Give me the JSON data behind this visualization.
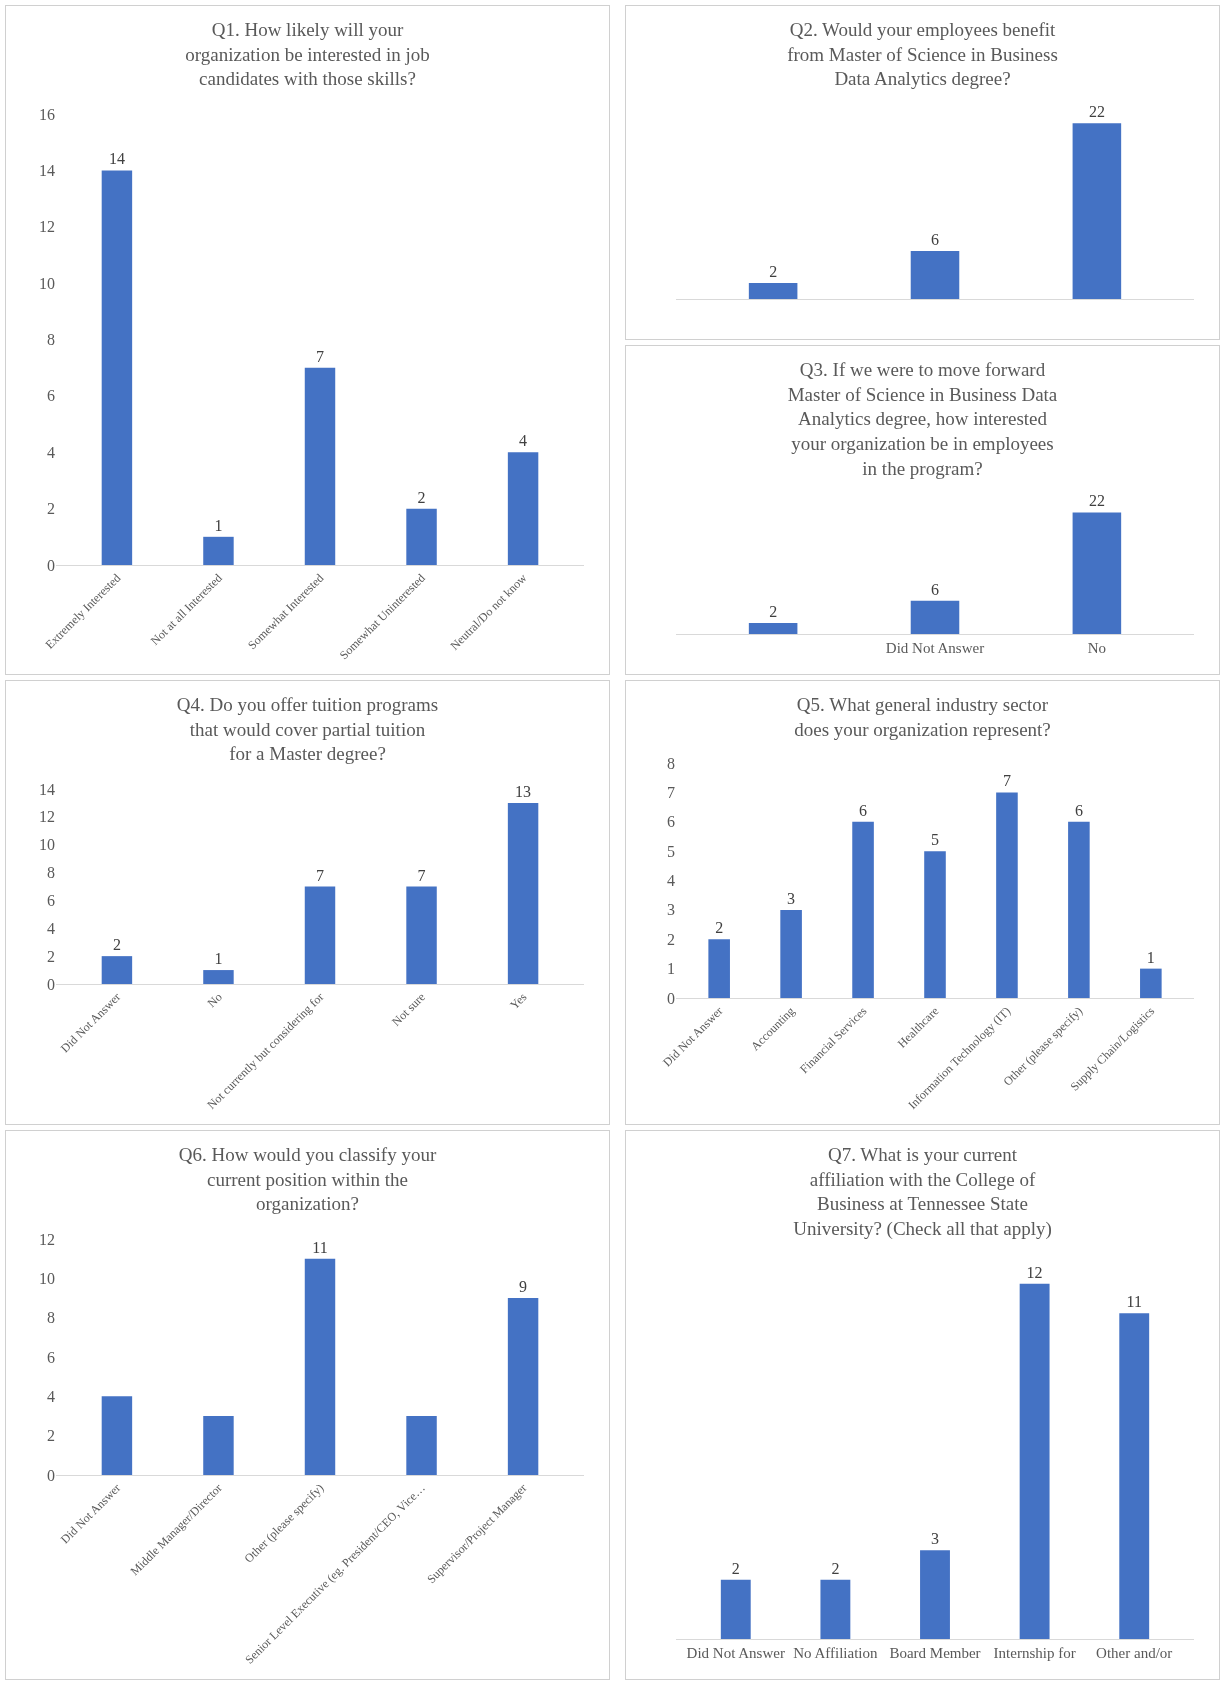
{
  "chart_data": [
    {
      "type": "bar",
      "title": "Q1. How likely will your organization be interested in job candidates with those skills?",
      "categories": [
        "Extremely Interested",
        "Not at all Interested",
        "Somewhat Interested",
        "Somewhat Uninterested",
        "Neutral/Do not know"
      ],
      "values": [
        14,
        1,
        7,
        2,
        4
      ],
      "color": "#4472c4",
      "ylim": [
        0,
        16
      ],
      "yticks": [
        0,
        2,
        4,
        6,
        8,
        10,
        12,
        14,
        16
      ],
      "data_labels": true
    },
    {
      "type": "bar",
      "title": "Q2. Would your employees benefit from Master of Science in Business Data Analytics degree?",
      "categories": [
        null,
        null,
        null
      ],
      "values": [
        2,
        6,
        22
      ],
      "color": "#4472c4",
      "data_labels": true,
      "tick_labels": false
    },
    {
      "type": "bar",
      "title": "Q3. If we were to move forward Master of Science in Business Data Analytics degree, how interested your organization be in employees in the program?",
      "categories": [
        null,
        "Did Not Answer",
        "No"
      ],
      "values": [
        2,
        6,
        22
      ],
      "color": "#4472c4",
      "data_labels": true,
      "tick_labels": "x"
    },
    {
      "type": "bar",
      "title": "Q4. Do you offer tuition programs that would cover partial tuition for a Master degree?",
      "categories": [
        "Did Not Answer",
        "No",
        "Not currently but considering for",
        "Not sure",
        "Yes"
      ],
      "values": [
        2,
        1,
        7,
        7,
        13
      ],
      "color": "#4472c4",
      "ylim": [
        0,
        14
      ],
      "yticks": [
        0,
        2,
        4,
        6,
        8,
        10,
        12,
        14
      ],
      "data_labels": true
    },
    {
      "type": "bar",
      "title": "Q5. What general industry sector does your organization represent?",
      "categories": [
        "Did Not Answer",
        "Accounting",
        "Financial Services",
        "Healthcare",
        "Information Technology (IT)",
        "Other (please specify)",
        "Supply Chain/Logistics"
      ],
      "values": [
        2,
        3,
        6,
        5,
        7,
        6,
        1
      ],
      "color": "#4472c4",
      "ylim": [
        0,
        8
      ],
      "yticks": [
        0,
        1,
        2,
        3,
        4,
        5,
        6,
        7,
        8
      ],
      "data_labels": true
    },
    {
      "type": "bar",
      "title": "Q6. How would you classify your current position within the organization?",
      "categories": [
        "Did Not Answer",
        "Middle Manager/Director",
        "Other (please specify)",
        "Senior Level Executive (eg. President/CEO, Vice…",
        "Supervisor/Project Manager"
      ],
      "values": [
        4,
        3,
        11,
        3,
        9
      ],
      "value_labels": [
        null,
        null,
        "11",
        null,
        "9"
      ],
      "color": "#4472c4",
      "ylim": [
        0,
        12
      ],
      "yticks": [
        0,
        2,
        4,
        6,
        8,
        10,
        12
      ]
    },
    {
      "type": "bar",
      "title": "Q7. What is your current affiliation with the College of Business at Tennessee State University? (Check all that apply)",
      "categories": [
        "Did Not Answer",
        "No Affiliation",
        "Board Member",
        "Internship for",
        "Other and/or"
      ],
      "values": [
        2,
        2,
        3,
        12,
        11
      ],
      "color": "#4472c4",
      "data_labels": true,
      "tick_labels": "x"
    }
  ]
}
